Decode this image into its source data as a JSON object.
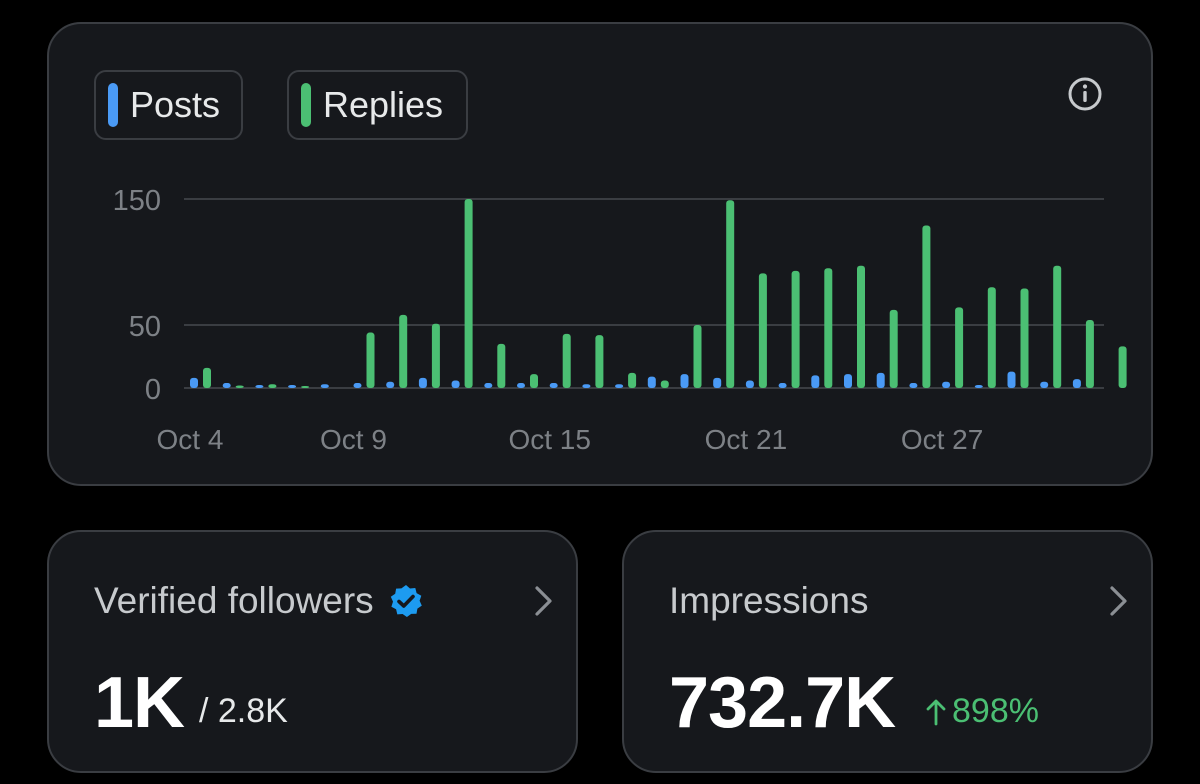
{
  "legend": {
    "posts": {
      "label": "Posts",
      "color": "#4a9af5"
    },
    "replies": {
      "label": "Replies",
      "color": "#4bbf73"
    }
  },
  "icons": {
    "info": "info-icon",
    "verified": "verified-badge-icon",
    "chevron": "chevron-right-icon",
    "arrow": "arrow-up-icon"
  },
  "chart_data": {
    "type": "bar",
    "x_tick_labels": [
      "Oct 4",
      "Oct 9",
      "Oct 15",
      "Oct 21",
      "Oct 27"
    ],
    "x_tick_day_index": [
      0,
      5,
      11,
      17,
      23
    ],
    "y_tick_labels": [
      "0",
      "50",
      "150"
    ],
    "y_ticks": [
      0,
      50,
      150
    ],
    "ylim": [
      0,
      150
    ],
    "grid": true,
    "legend_placement": "top-left",
    "categories": [
      "Oct 4",
      "Oct 5",
      "Oct 6",
      "Oct 7",
      "Oct 8",
      "Oct 9",
      "Oct 10",
      "Oct 11",
      "Oct 12",
      "Oct 13",
      "Oct 14",
      "Oct 15",
      "Oct 16",
      "Oct 17",
      "Oct 18",
      "Oct 19",
      "Oct 20",
      "Oct 21",
      "Oct 22",
      "Oct 23",
      "Oct 24",
      "Oct 25",
      "Oct 26",
      "Oct 27",
      "Oct 28",
      "Oct 29",
      "Oct 30",
      "Oct 31",
      "Nov 1"
    ],
    "series": [
      {
        "name": "Posts",
        "color": "#4a9af5",
        "values": [
          8,
          4,
          2,
          2,
          3,
          4,
          5,
          8,
          6,
          4,
          4,
          4,
          3,
          3,
          9,
          11,
          8,
          6,
          4,
          10,
          11,
          12,
          4,
          5,
          2,
          13,
          5,
          7,
          0
        ]
      },
      {
        "name": "Replies",
        "color": "#4bbf73",
        "values": [
          16,
          2,
          3,
          1,
          0,
          44,
          58,
          51,
          150,
          35,
          11,
          43,
          42,
          12,
          6,
          50,
          149,
          91,
          93,
          95,
          97,
          62,
          129,
          64,
          80,
          79,
          97,
          54,
          33
        ]
      }
    ]
  },
  "followers": {
    "title": "Verified followers",
    "value": "1K",
    "total": "/ 2.8K"
  },
  "impressions": {
    "title": "Impressions",
    "value": "732.7K",
    "change": "898%",
    "change_color": "#4bbf73"
  }
}
